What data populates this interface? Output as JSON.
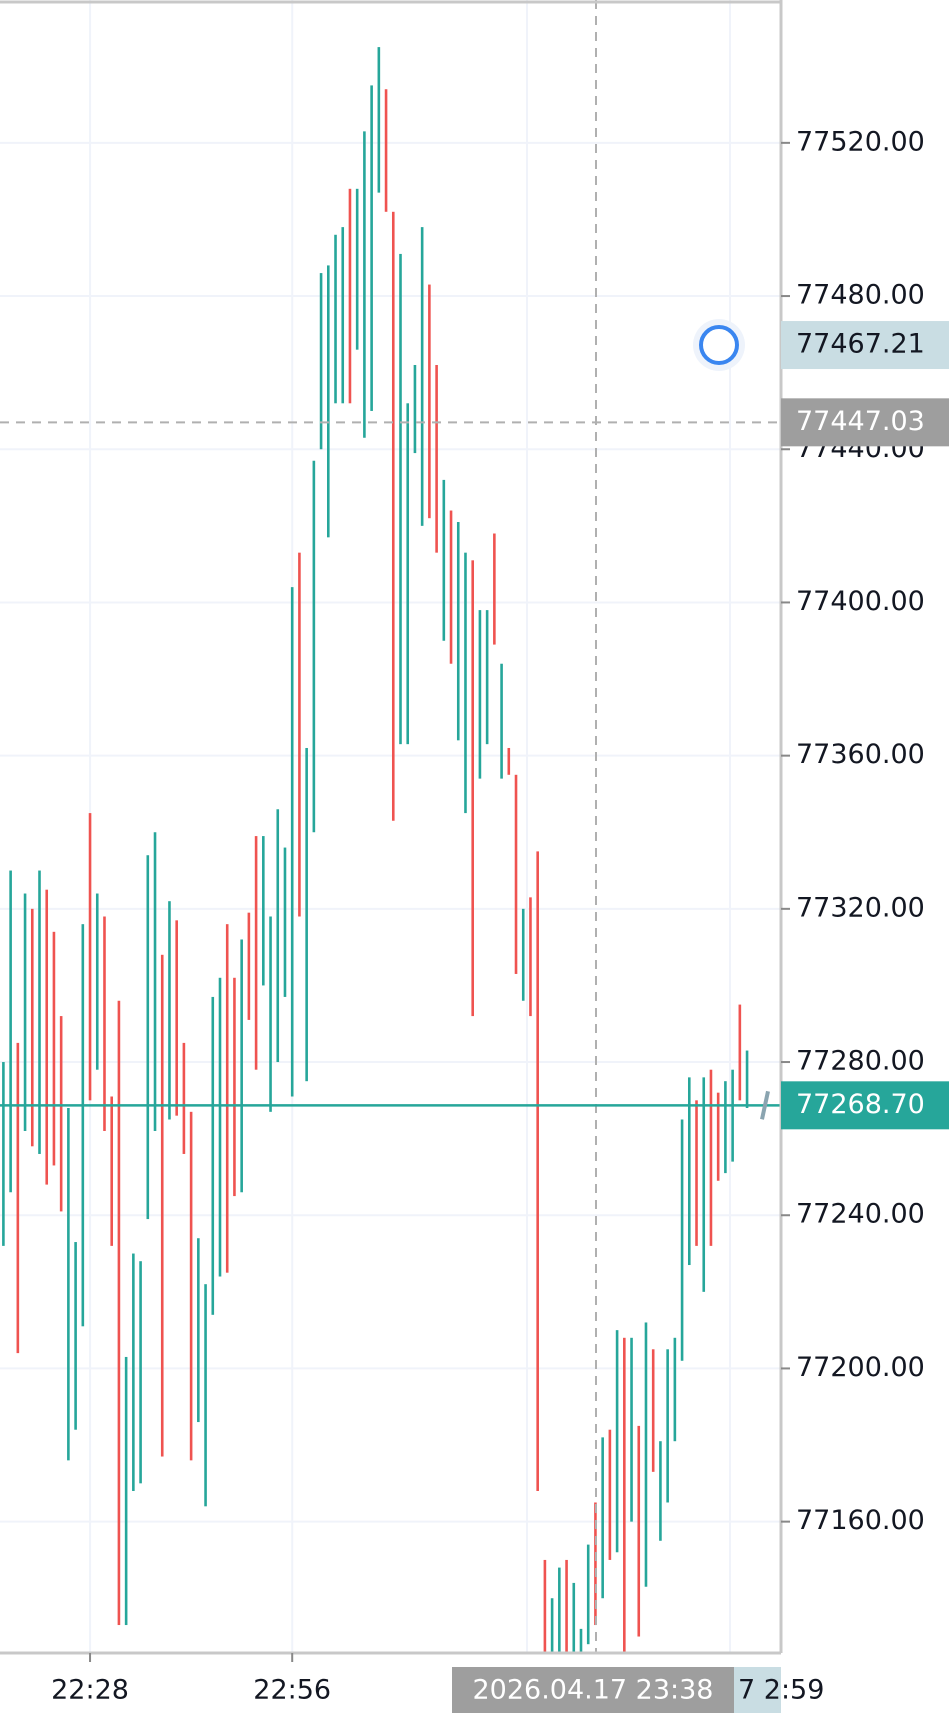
{
  "chart_data": {
    "type": "range_bar",
    "categories": [
      null,
      null,
      null,
      null,
      null,
      null,
      null,
      null,
      null,
      null,
      null,
      null,
      "22:28",
      null,
      null,
      null,
      null,
      null,
      null,
      null,
      null,
      null,
      null,
      null,
      null,
      null,
      null,
      null,
      null,
      null,
      null,
      null,
      null,
      null,
      null,
      null,
      null,
      null,
      null,
      null,
      "22:56",
      null,
      null,
      null,
      null,
      null,
      null,
      null,
      null,
      null,
      null,
      null,
      null,
      null,
      null,
      null,
      null,
      null,
      null,
      null,
      null,
      null,
      null,
      null,
      null,
      null,
      null,
      null,
      null,
      null,
      null,
      null,
      null,
      null,
      null,
      null,
      null,
      null,
      null,
      null,
      null,
      null,
      null,
      null,
      null,
      null,
      null,
      null,
      null,
      null,
      null,
      null,
      null,
      null,
      null,
      null,
      null,
      null,
      null,
      null,
      null,
      null,
      null,
      null
    ],
    "highs": [
      77280,
      77330,
      77285,
      77324,
      77320,
      77330,
      77325,
      77314,
      77292,
      77268,
      77233,
      77316,
      77345,
      77324,
      77318,
      77271,
      77296,
      77203,
      77230,
      77228,
      77334,
      77340,
      77308,
      77322,
      77317,
      77285,
      77267,
      77234,
      77222,
      77297,
      77302,
      77316,
      77302,
      77312,
      77319,
      77339,
      77339,
      77318,
      77346,
      77336,
      77404,
      77413,
      77362,
      77437,
      77486,
      77488,
      77496,
      77498,
      77508,
      77508,
      77523,
      77535,
      77545,
      77534,
      77502,
      77491,
      77452,
      77462,
      77498,
      77483,
      77462,
      77432,
      77424,
      77421,
      77413,
      77411,
      77398,
      77398,
      77418,
      77384,
      77362,
      77355,
      77320,
      77323,
      77335,
      77150,
      77140,
      77148,
      77150,
      77144,
      77132,
      77154,
      77165,
      77182,
      77184,
      77210,
      77208,
      77208,
      77185,
      77212,
      77205,
      77181,
      77205,
      77208,
      77265,
      77276,
      77270,
      77276,
      77278,
      77272,
      77275,
      77278,
      77295,
      77283
    ],
    "lows": [
      77232,
      77246,
      77204,
      77262,
      77258,
      77256,
      77248,
      77253,
      77241,
      77176,
      77184,
      77211,
      77270,
      77278,
      77262,
      77232,
      77133,
      77133,
      77168,
      77170,
      77239,
      77262,
      77177,
      77265,
      77266,
      77256,
      77176,
      77186,
      77164,
      77214,
      77224,
      77225,
      77245,
      77246,
      77291,
      77278,
      77300,
      77267,
      77280,
      77297,
      77271,
      77318,
      77275,
      77340,
      77440,
      77417,
      77452,
      77452,
      77452,
      77466,
      77443,
      77450,
      77507,
      77502,
      77343,
      77363,
      77363,
      77439,
      77420,
      77422,
      77413,
      77390,
      77384,
      77364,
      77345,
      77292,
      77354,
      77363,
      77389,
      77354,
      77355,
      77303,
      77296,
      77292,
      77168,
      77126,
      77126,
      77126,
      77126,
      77126,
      77126,
      77128,
      77133,
      77140,
      77150,
      77152,
      77126,
      77160,
      77130,
      77143,
      77173,
      77155,
      77165,
      77181,
      77202,
      77227,
      77232,
      77220,
      77232,
      77249,
      77251,
      77254,
      77270,
      77268
    ],
    "colors": [
      "#26a69a",
      "#26a69a",
      "#ef5350",
      "#26a69a",
      "#ef5350",
      "#26a69a",
      "#ef5350",
      "#ef5350",
      "#ef5350",
      "#26a69a",
      "#26a69a",
      "#26a69a",
      "#ef5350",
      "#26a69a",
      "#ef5350",
      "#ef5350",
      "#ef5350",
      "#26a69a",
      "#26a69a",
      "#26a69a",
      "#26a69a",
      "#26a69a",
      "#ef5350",
      "#26a69a",
      "#ef5350",
      "#ef5350",
      "#ef5350",
      "#26a69a",
      "#26a69a",
      "#26a69a",
      "#26a69a",
      "#ef5350",
      "#ef5350",
      "#26a69a",
      "#ef5350",
      "#ef5350",
      "#26a69a",
      "#26a69a",
      "#26a69a",
      "#26a69a",
      "#26a69a",
      "#ef5350",
      "#26a69a",
      "#26a69a",
      "#26a69a",
      "#26a69a",
      "#26a69a",
      "#26a69a",
      "#ef5350",
      "#26a69a",
      "#26a69a",
      "#26a69a",
      "#26a69a",
      "#ef5350",
      "#ef5350",
      "#26a69a",
      "#26a69a",
      "#26a69a",
      "#26a69a",
      "#ef5350",
      "#ef5350",
      "#26a69a",
      "#ef5350",
      "#26a69a",
      "#26a69a",
      "#ef5350",
      "#26a69a",
      "#26a69a",
      "#ef5350",
      "#26a69a",
      "#ef5350",
      "#ef5350",
      "#26a69a",
      "#ef5350",
      "#ef5350",
      "#ef5350",
      "#26a69a",
      "#26a69a",
      "#ef5350",
      "#26a69a",
      "#26a69a",
      "#26a69a",
      "#ef5350",
      "#26a69a",
      "#ef5350",
      "#26a69a",
      "#ef5350",
      "#26a69a",
      "#ef5350",
      "#26a69a",
      "#ef5350",
      "#26a69a",
      "#26a69a",
      "#26a69a",
      "#26a69a",
      "#26a69a",
      "#ef5350",
      "#26a69a",
      "#ef5350",
      "#ef5350",
      "#26a69a",
      "#26a69a",
      "#ef5350",
      "#26a69a"
    ],
    "ylim": [
      77125.7,
      77557.3
    ],
    "yticks": [
      {
        "value": 77160,
        "label": "77160.00"
      },
      {
        "value": 77200,
        "label": "77200.00"
      },
      {
        "value": 77240,
        "label": "77240.00"
      },
      {
        "value": 77280,
        "label": "77280.00"
      },
      {
        "value": 77320,
        "label": "77320.00"
      },
      {
        "value": 77360,
        "label": "77360.00"
      },
      {
        "value": 77400,
        "label": "77400.00"
      },
      {
        "value": 77440,
        "label": "77440.00"
      },
      {
        "value": 77480,
        "label": "77480.00"
      },
      {
        "value": 77520,
        "label": "77520.00"
      }
    ],
    "grid": true,
    "last_price": {
      "value": 77268.7,
      "label": "77268.70"
    },
    "crosshair_price": 77447.03,
    "marker_price": 77467.21,
    "crosshair_time": "2026.04.17 23:38",
    "last_time": "7 2:59"
  }
}
